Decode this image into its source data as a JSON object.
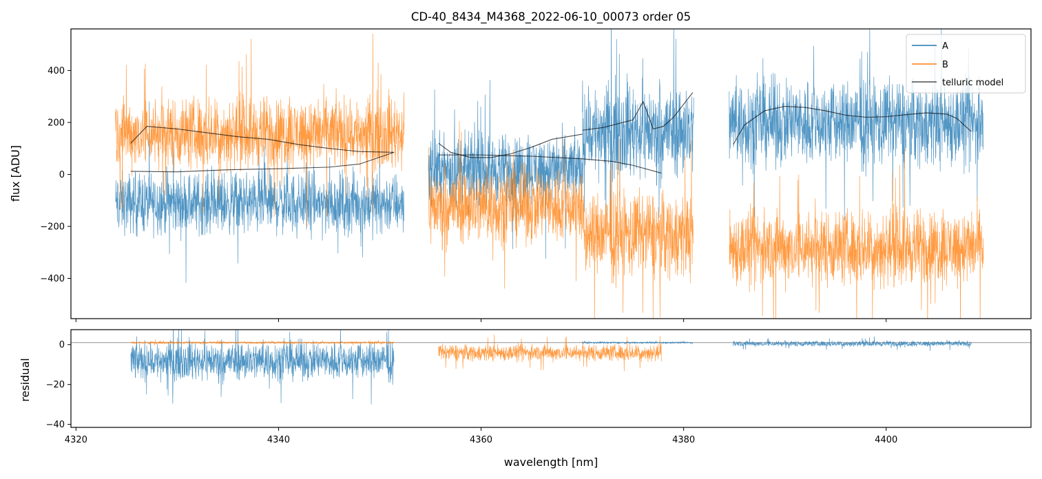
{
  "title": "CD-40_8434_M4368_2022-06-10_00073  order 05",
  "colors": {
    "A": "#1f77b4",
    "B": "#ff7f0e",
    "model": "#000000",
    "zero_line": "#808080"
  },
  "chart_data": [
    {
      "panel": "top",
      "type": "line",
      "ylabel": "flux [ADU]",
      "xlim": [
        4319.5,
        4414.3
      ],
      "ylim": [
        -555,
        560
      ],
      "yticks": [
        -400,
        -200,
        0,
        200,
        400
      ],
      "ytick_labels": [
        "−400",
        "−200",
        "0",
        "200",
        "400"
      ],
      "legend": {
        "location": "top-right",
        "entries": [
          "A",
          "B",
          "telluric model"
        ]
      },
      "series": [
        {
          "name": "A",
          "color_key": "A",
          "style": "noisy",
          "segments": [
            {
              "x": [
                4323.9,
                4352.4
              ],
              "center": -110,
              "amp": 170
            },
            {
              "x": [
                4354.8,
                4370.0
              ],
              "center": 20,
              "amp": 190
            },
            {
              "x": [
                4370.0,
                4381.0
              ],
              "center": 170,
              "amp": 260
            },
            {
              "x": [
                4384.5,
                4409.6
              ],
              "center": 200,
              "amp": 240
            }
          ]
        },
        {
          "name": "B",
          "color_key": "B",
          "style": "noisy",
          "segments": [
            {
              "x": [
                4323.9,
                4352.4
              ],
              "center": 160,
              "amp": 200
            },
            {
              "x": [
                4354.8,
                4370.0
              ],
              "center": -120,
              "amp": 210
            },
            {
              "x": [
                4370.0,
                4381.0
              ],
              "center": -230,
              "amp": 240
            },
            {
              "x": [
                4384.5,
                4409.6
              ],
              "center": -280,
              "amp": 210
            }
          ]
        },
        {
          "name": "telluric model",
          "color_key": "model",
          "style": "lines",
          "lines": [
            {
              "x": [
                4325.4,
                4327.0,
                4330.0,
                4333.0,
                4336.0,
                4339.0,
                4342.0,
                4345.0,
                4348.0,
                4351.4
              ],
              "y": [
                120,
                185,
                175,
                160,
                145,
                135,
                115,
                100,
                88,
                85
              ]
            },
            {
              "x": [
                4325.4,
                4330.0,
                4335.0,
                4340.0,
                4345.0,
                4348.0,
                4351.4
              ],
              "y": [
                12,
                10,
                18,
                22,
                28,
                40,
                85
              ]
            },
            {
              "x": [
                4355.8,
                4357.0,
                4359.0,
                4361.0,
                4363.0,
                4365.0,
                4367.0,
                4370.0
              ],
              "y": [
                120,
                85,
                65,
                65,
                80,
                105,
                135,
                155
              ]
            },
            {
              "x": [
                4355.8,
                4360.0,
                4365.0,
                4370.0,
                4373.0,
                4375.0,
                4377.8
              ],
              "y": [
                75,
                75,
                70,
                60,
                50,
                35,
                5
              ]
            },
            {
              "x": [
                4370.0,
                4372.0,
                4374.0,
                4375.0,
                4376.0,
                4377.0,
                4378.0,
                4379.0,
                4380.0,
                4380.9
              ],
              "y": [
                170,
                180,
                200,
                210,
                280,
                175,
                185,
                220,
                270,
                315
              ]
            },
            {
              "x": [
                4384.9,
                4386.0,
                4388.0,
                4390.0,
                4392.0,
                4394.0,
                4396.0,
                4398.0,
                4400.0,
                4402.0,
                4404.0,
                4406.0,
                4407.0,
                4408.4
              ],
              "y": [
                115,
                190,
                245,
                262,
                258,
                245,
                228,
                220,
                222,
                230,
                237,
                232,
                215,
                165
              ]
            }
          ]
        }
      ]
    },
    {
      "panel": "bottom",
      "type": "line",
      "xlabel": "wavelength [nm]",
      "ylabel": "residual",
      "xlim": [
        4319.5,
        4414.3
      ],
      "ylim": [
        -41.5,
        7.5
      ],
      "xticks": [
        4320,
        4340,
        4360,
        4380,
        4400
      ],
      "xtick_labels": [
        "4320",
        "4340",
        "4360",
        "4380",
        "4400"
      ],
      "yticks": [
        -40,
        -20,
        0
      ],
      "ytick_labels": [
        "−40",
        "−20",
        "0"
      ],
      "zero_line": 1,
      "series": [
        {
          "name": "A",
          "color_key": "A",
          "style": "noisy",
          "segments": [
            {
              "x": [
                4325.4,
                4351.4
              ],
              "center": -8,
              "amp": 14
            },
            {
              "x": [
                4370.0,
                4380.9
              ],
              "center": 1,
              "amp": 0.6
            },
            {
              "x": [
                4384.9,
                4408.4
              ],
              "center": 0.5,
              "amp": 2
            }
          ]
        },
        {
          "name": "B",
          "color_key": "B",
          "style": "noisy",
          "segments": [
            {
              "x": [
                4325.4,
                4351.4
              ],
              "center": 1,
              "amp": 0.8
            },
            {
              "x": [
                4355.8,
                4377.8
              ],
              "center": -4,
              "amp": 6
            }
          ]
        }
      ]
    }
  ]
}
